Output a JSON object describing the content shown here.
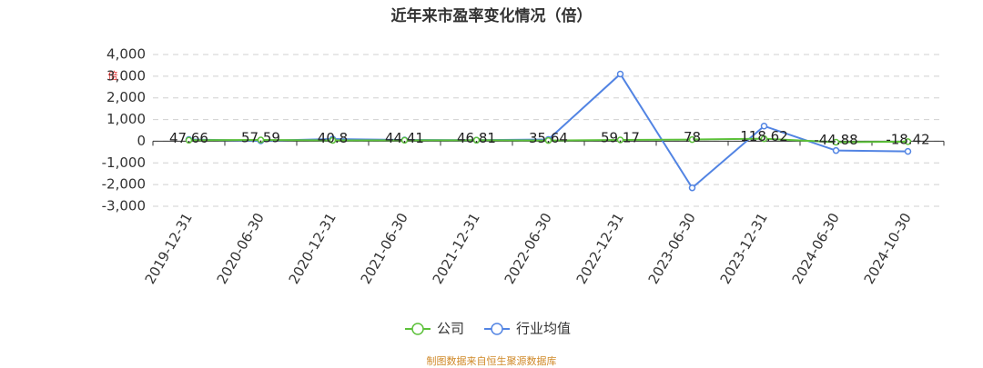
{
  "chart_data": {
    "type": "line",
    "title": "近年来市盈率变化情况（倍）",
    "ylabel": "倍",
    "categories": [
      "2019-12-31",
      "2020-06-30",
      "2020-12-31",
      "2021-06-30",
      "2021-12-31",
      "2022-06-30",
      "2022-12-31",
      "2023-06-30",
      "2023-12-31",
      "2024-06-30",
      "2024-10-30"
    ],
    "series": [
      {
        "name": "公司",
        "color": "#5cc13a",
        "values": [
          47.66,
          57.59,
          40.8,
          44.41,
          46.81,
          35.64,
          59.17,
          78,
          118.62,
          -44.88,
          -18.42
        ]
      },
      {
        "name": "行业均值",
        "color": "#5284e3",
        "values": [
          80,
          20,
          100,
          60,
          50,
          80,
          3100,
          -2150,
          700,
          -430,
          -470
        ]
      }
    ],
    "ylim": [
      -3000,
      4000
    ],
    "yticks": [
      {
        "value": -3000,
        "label": "-3,000"
      },
      {
        "value": -2000,
        "label": "-2,000"
      },
      {
        "value": -1000,
        "label": "-1,000"
      },
      0,
      {
        "value": 1000,
        "label": "1,000"
      },
      {
        "value": 2000,
        "label": "2,000"
      },
      {
        "value": 3000,
        "label": "3,000"
      },
      {
        "value": 4000,
        "label": "4,000"
      }
    ],
    "grid": true,
    "source": "制图数据来自恒生聚源数据库"
  }
}
